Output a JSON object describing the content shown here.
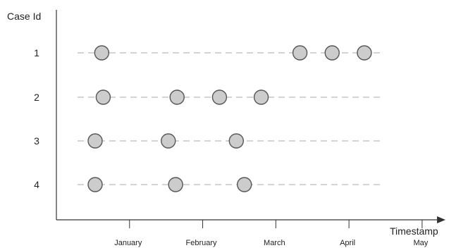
{
  "chart_data": {
    "type": "scatter",
    "title": "",
    "xlabel": "Timestamp",
    "ylabel": "Case Id",
    "x_tick_labels": [
      "January",
      "February",
      "March",
      "April",
      "May"
    ],
    "x_tick_positions": [
      1,
      2,
      3,
      4,
      5
    ],
    "xlim": [
      0.0,
      5.3
    ],
    "y_categories": [
      "1",
      "2",
      "3",
      "4"
    ],
    "grid": "dashed horizontal line per case",
    "point_fill": "#cccccc",
    "point_stroke": "#555555",
    "axis_color": "#333333",
    "grid_color": "#bbbbbb",
    "series": [
      {
        "case": "1",
        "x": [
          0.62,
          3.33,
          3.77,
          4.21
        ]
      },
      {
        "case": "2",
        "x": [
          0.64,
          1.65,
          2.23,
          2.8
        ]
      },
      {
        "case": "3",
        "x": [
          0.53,
          1.53,
          2.46
        ]
      },
      {
        "case": "4",
        "x": [
          0.53,
          1.63,
          2.57
        ]
      }
    ]
  }
}
